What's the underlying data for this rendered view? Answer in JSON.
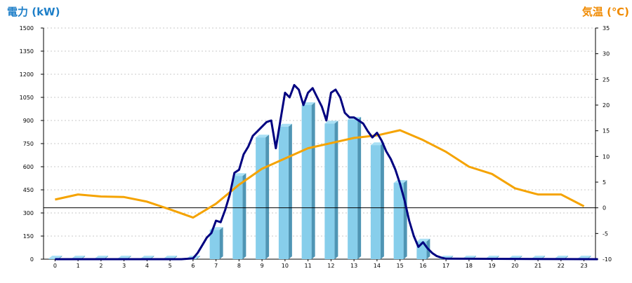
{
  "chart_data": {
    "type": "bar",
    "title": "",
    "xlabel": "",
    "y_left_label": "電力 (kW)",
    "y_right_label": "気温 (℃)",
    "y_left_range": [
      0,
      1500
    ],
    "y_left_ticks": [
      0,
      150,
      300,
      450,
      600,
      750,
      900,
      1050,
      1200,
      1350,
      1500
    ],
    "y_right_range": [
      -10,
      35
    ],
    "y_right_ticks": [
      -10,
      -5,
      0,
      5,
      10,
      15,
      20,
      25,
      30,
      35
    ],
    "categories": [
      "0",
      "1",
      "2",
      "3",
      "4",
      "5",
      "6",
      "7",
      "8",
      "9",
      "10",
      "11",
      "12",
      "13",
      "14",
      "15",
      "16",
      "17",
      "18",
      "19",
      "20",
      "21",
      "22",
      "23"
    ],
    "grid": true,
    "legend": "none",
    "bar_values": [
      0,
      0,
      0,
      0,
      0,
      0,
      0,
      190,
      540,
      790,
      860,
      1000,
      880,
      905,
      740,
      495,
      115,
      0,
      0,
      0,
      0,
      0,
      0,
      0
    ],
    "power_line": {
      "x": [
        0,
        5.5,
        6,
        6.2,
        6.4,
        6.6,
        6.8,
        7.0,
        7.2,
        7.4,
        7.6,
        7.8,
        8.0,
        8.2,
        8.4,
        8.6,
        8.8,
        9.0,
        9.2,
        9.4,
        9.6,
        9.8,
        10.0,
        10.2,
        10.4,
        10.6,
        10.8,
        11.0,
        11.2,
        11.4,
        11.6,
        11.8,
        12.0,
        12.2,
        12.4,
        12.6,
        12.8,
        13.0,
        13.2,
        13.4,
        13.6,
        13.8,
        14.0,
        14.2,
        14.4,
        14.6,
        14.8,
        15.0,
        15.2,
        15.4,
        15.6,
        15.8,
        16.0,
        16.2,
        16.4,
        16.6,
        16.8,
        17.0,
        23.6
      ],
      "y": [
        0,
        0,
        5,
        40,
        90,
        140,
        170,
        250,
        240,
        320,
        420,
        560,
        580,
        680,
        730,
        800,
        830,
        860,
        890,
        900,
        720,
        900,
        1080,
        1050,
        1130,
        1100,
        1000,
        1080,
        1110,
        1050,
        990,
        900,
        1080,
        1100,
        1050,
        950,
        920,
        920,
        900,
        880,
        830,
        790,
        820,
        770,
        700,
        650,
        580,
        490,
        380,
        250,
        150,
        80,
        110,
        70,
        40,
        20,
        10,
        3,
        0
      ]
    },
    "temperature_line": {
      "x": [
        0,
        1,
        2,
        3,
        4,
        5,
        6,
        7,
        8,
        9,
        10,
        11,
        12,
        13,
        14,
        15,
        16,
        17,
        18,
        19,
        20,
        21,
        22,
        23
      ],
      "y": [
        1.6,
        2.6,
        2.2,
        2.1,
        1.2,
        -0.3,
        -1.9,
        0.8,
        4.5,
        7.6,
        9.6,
        11.6,
        12.6,
        13.6,
        14.1,
        15.1,
        13.2,
        10.9,
        8.0,
        6.6,
        3.8,
        2.6,
        2.6,
        0.3
      ]
    },
    "colors": {
      "bar_face": "#87ceeb",
      "bar_side": "#4f95b4",
      "bar_top": "#a9e0f5",
      "power_line": "#000080",
      "temperature_line": "#f5a300",
      "left_title": "#1e7fc8",
      "right_title": "#f08a00",
      "grid": "#c8c8c8",
      "zero_line": "#000000"
    }
  }
}
